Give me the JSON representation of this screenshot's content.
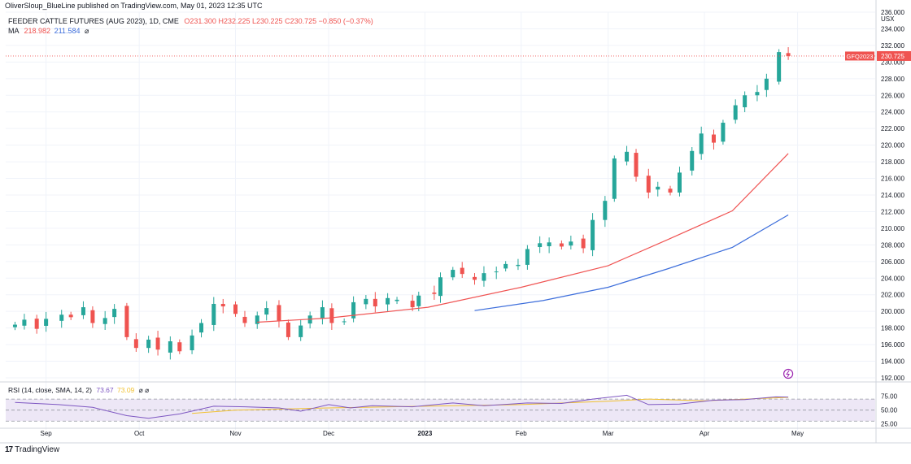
{
  "publisher": "OliverSloup_BlueLine published on TradingView.com, May 01, 2023 12:35 UTC",
  "legend": {
    "symbol_line": "FEEDER CATTLE FUTURES (AUG 2023), 1D, CME",
    "ohlc": {
      "O": "O231.300",
      "H": "H232.225",
      "L": "L230.225",
      "C": "C230.725",
      "chg": "−0.850 (−0.37%)"
    },
    "ma_label": "MA",
    "ma_values": [
      "218.982",
      "211.584"
    ],
    "ma_eye": "⌀"
  },
  "currency": "USX",
  "last_price_tag": {
    "symbol": "GFQ2023",
    "price": "230.725"
  },
  "rsi": {
    "label": "RSI (14, close, SMA, 14, 2)",
    "value": "73.67",
    "signal": "73.09",
    "eye": "⌀ ⌀",
    "levels": [
      75,
      50,
      25
    ],
    "tick_labels": [
      "75.00",
      "50.00",
      "25.00"
    ]
  },
  "brand": {
    "logo_mark": "17",
    "name": "TradingView"
  },
  "colors": {
    "up": "#26a69a",
    "down": "#ef5350",
    "ma_fast": "#f05453",
    "ma_slow": "#3d6edb",
    "rsi": "#7e57c2",
    "rsi_ma": "#f1c232",
    "rsi_band": "#ede7f6"
  },
  "chart_data": {
    "type": "candlestick",
    "title": "FEEDER CATTLE FUTURES (AUG 2023), 1D, CME",
    "y_unit": "USX",
    "ylim": [
      192,
      236
    ],
    "y_ticks": [
      "236.000",
      "234.000",
      "232.000",
      "230.000",
      "228.000",
      "226.000",
      "224.000",
      "222.000",
      "220.000",
      "218.000",
      "216.000",
      "214.000",
      "212.000",
      "210.000",
      "208.000",
      "206.000",
      "204.000",
      "202.000",
      "200.000",
      "198.000",
      "196.000",
      "194.000",
      "192.000"
    ],
    "x_ticks": [
      "Sep",
      "Oct",
      "Nov",
      "Dec",
      "2023",
      "Feb",
      "Mar",
      "Apr",
      "May"
    ],
    "x_range": [
      "2022-08-19",
      "2023-05-26"
    ],
    "close_series": [
      [
        "2022-08-22",
        198.4
      ],
      [
        "2022-08-25",
        199.0
      ],
      [
        "2022-08-29",
        197.9
      ],
      [
        "2022-09-01",
        199.1
      ],
      [
        "2022-09-06",
        199.6
      ],
      [
        "2022-09-09",
        199.3
      ],
      [
        "2022-09-13",
        200.5
      ],
      [
        "2022-09-16",
        198.6
      ],
      [
        "2022-09-20",
        199.2
      ],
      [
        "2022-09-23",
        200.3
      ],
      [
        "2022-09-27",
        196.9
      ],
      [
        "2022-09-30",
        195.6
      ],
      [
        "2022-10-04",
        196.6
      ],
      [
        "2022-10-07",
        195.4
      ],
      [
        "2022-10-11",
        196.4
      ],
      [
        "2022-10-14",
        195.2
      ],
      [
        "2022-10-18",
        197.1
      ],
      [
        "2022-10-21",
        198.6
      ],
      [
        "2022-10-25",
        200.9
      ],
      [
        "2022-10-28",
        200.6
      ],
      [
        "2022-11-01",
        199.7
      ],
      [
        "2022-11-04",
        198.6
      ],
      [
        "2022-11-08",
        199.5
      ],
      [
        "2022-11-11",
        200.4
      ],
      [
        "2022-11-15",
        198.9
      ],
      [
        "2022-11-18",
        196.9
      ],
      [
        "2022-11-22",
        198.3
      ],
      [
        "2022-11-25",
        199.5
      ],
      [
        "2022-11-29",
        200.5
      ],
      [
        "2022-12-02",
        198.6
      ],
      [
        "2022-12-06",
        198.8
      ],
      [
        "2022-12-09",
        201.1
      ],
      [
        "2022-12-13",
        201.5
      ],
      [
        "2022-12-16",
        200.6
      ],
      [
        "2022-12-20",
        201.6
      ],
      [
        "2022-12-23",
        201.4
      ],
      [
        "2022-12-28",
        200.5
      ],
      [
        "2022-12-30",
        201.9
      ],
      [
        "2023-01-04",
        202.1
      ],
      [
        "2023-01-06",
        204.1
      ],
      [
        "2023-01-10",
        205.0
      ],
      [
        "2023-01-13",
        204.5
      ],
      [
        "2023-01-17",
        203.8
      ],
      [
        "2023-01-20",
        204.6
      ],
      [
        "2023-01-24",
        204.8
      ],
      [
        "2023-01-27",
        205.7
      ],
      [
        "2023-01-31",
        205.6
      ],
      [
        "2023-02-03",
        207.5
      ],
      [
        "2023-02-07",
        208.2
      ],
      [
        "2023-02-10",
        208.3
      ],
      [
        "2023-02-14",
        207.8
      ],
      [
        "2023-02-17",
        208.4
      ],
      [
        "2023-02-21",
        207.6
      ],
      [
        "2023-02-24",
        211.0
      ],
      [
        "2023-02-28",
        213.3
      ],
      [
        "2023-03-03",
        218.4
      ],
      [
        "2023-03-07",
        219.2
      ],
      [
        "2023-03-10",
        216.2
      ],
      [
        "2023-03-14",
        214.3
      ],
      [
        "2023-03-17",
        215.0
      ],
      [
        "2023-03-21",
        214.3
      ],
      [
        "2023-03-24",
        216.7
      ],
      [
        "2023-03-28",
        219.3
      ],
      [
        "2023-03-31",
        221.4
      ],
      [
        "2023-04-04",
        220.3
      ],
      [
        "2023-04-07",
        222.7
      ],
      [
        "2023-04-11",
        224.8
      ],
      [
        "2023-04-14",
        226.0
      ],
      [
        "2023-04-18",
        226.4
      ],
      [
        "2023-04-21",
        228.0
      ],
      [
        "2023-04-25",
        231.2
      ],
      [
        "2023-04-28",
        230.725
      ]
    ],
    "ma_fast": [
      [
        "2022-11-08",
        198.7
      ],
      [
        "2022-12-01",
        199.2
      ],
      [
        "2023-01-02",
        200.5
      ],
      [
        "2023-02-01",
        202.9
      ],
      [
        "2023-03-01",
        205.5
      ],
      [
        "2023-03-20",
        208.6
      ],
      [
        "2023-04-10",
        212.1
      ],
      [
        "2023-04-28",
        219.0
      ]
    ],
    "ma_slow": [
      [
        "2023-01-17",
        200.1
      ],
      [
        "2023-02-08",
        201.3
      ],
      [
        "2023-03-01",
        202.9
      ],
      [
        "2023-03-20",
        205.1
      ],
      [
        "2023-04-10",
        207.7
      ],
      [
        "2023-04-28",
        211.6
      ]
    ],
    "rsi_series": [
      [
        "2022-08-22",
        64
      ],
      [
        "2022-09-05",
        60
      ],
      [
        "2022-09-16",
        55
      ],
      [
        "2022-09-27",
        40
      ],
      [
        "2022-10-04",
        35
      ],
      [
        "2022-10-14",
        43
      ],
      [
        "2022-10-25",
        57
      ],
      [
        "2022-11-04",
        56
      ],
      [
        "2022-11-15",
        54
      ],
      [
        "2022-11-22",
        48
      ],
      [
        "2022-12-01",
        60
      ],
      [
        "2022-12-08",
        54
      ],
      [
        "2022-12-15",
        58
      ],
      [
        "2022-12-28",
        56
      ],
      [
        "2023-01-10",
        63
      ],
      [
        "2023-01-20",
        58
      ],
      [
        "2023-02-03",
        63
      ],
      [
        "2023-02-14",
        62
      ],
      [
        "2023-02-24",
        70
      ],
      [
        "2023-03-07",
        77
      ],
      [
        "2023-03-14",
        60
      ],
      [
        "2023-03-24",
        61
      ],
      [
        "2023-04-04",
        68
      ],
      [
        "2023-04-14",
        69
      ],
      [
        "2023-04-24",
        74
      ],
      [
        "2023-04-28",
        73.67
      ]
    ],
    "rsi_ma_series": [
      [
        "2022-10-18",
        44
      ],
      [
        "2022-11-01",
        50
      ],
      [
        "2022-12-01",
        54
      ],
      [
        "2023-01-01",
        57
      ],
      [
        "2023-02-01",
        60
      ],
      [
        "2023-03-01",
        66
      ],
      [
        "2023-03-14",
        70
      ],
      [
        "2023-04-01",
        67
      ],
      [
        "2023-04-28",
        73.09
      ]
    ]
  }
}
